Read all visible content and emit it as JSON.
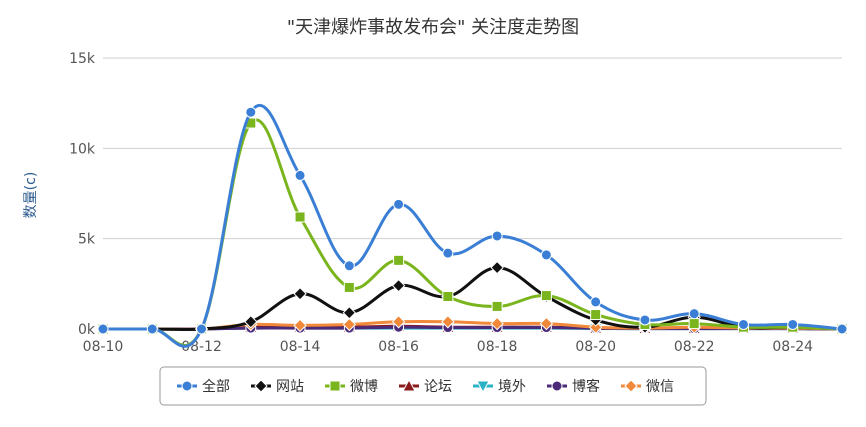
{
  "chart_data": {
    "type": "line",
    "title": "\"天津爆炸事故发布会\" 关注度走势图",
    "ylabel": "数量(c)",
    "xlabel": "",
    "x": [
      "08-10",
      "08-11",
      "08-12",
      "08-13",
      "08-14",
      "08-15",
      "08-16",
      "08-17",
      "08-18",
      "08-19",
      "08-20",
      "08-21",
      "08-22",
      "08-23",
      "08-24",
      "08-25"
    ],
    "x_tick_labels": [
      "08-10",
      "08-12",
      "08-14",
      "08-16",
      "08-18",
      "08-20",
      "08-22",
      "08-24"
    ],
    "y_tick_labels": [
      "0k",
      "5k",
      "10k",
      "15k"
    ],
    "ylim": [
      0,
      15000
    ],
    "grid": "horizontal",
    "legend_position": "bottom",
    "series": [
      {
        "name": "全部",
        "color": "#3a7fd5",
        "marker": "circle",
        "values": [
          0,
          0,
          0,
          12000,
          8500,
          3500,
          6900,
          4200,
          5150,
          4100,
          1500,
          500,
          850,
          250,
          250,
          0
        ]
      },
      {
        "name": "网站",
        "color": "#111111",
        "marker": "diamond",
        "values": [
          0,
          0,
          0,
          400,
          1950,
          900,
          2400,
          1800,
          3400,
          1800,
          500,
          100,
          650,
          100,
          100,
          0
        ]
      },
      {
        "name": "微博",
        "color": "#7ab51d",
        "marker": "square",
        "values": [
          0,
          0,
          0,
          11400,
          6200,
          2300,
          3800,
          1800,
          1250,
          1850,
          800,
          250,
          300,
          100,
          100,
          0
        ]
      },
      {
        "name": "论坛",
        "color": "#8b1a1a",
        "marker": "triangle",
        "values": [
          0,
          0,
          0,
          100,
          100,
          100,
          150,
          100,
          100,
          100,
          50,
          30,
          30,
          30,
          30,
          0
        ]
      },
      {
        "name": "境外",
        "color": "#2ab3c4",
        "marker": "triangle-down",
        "values": [
          0,
          0,
          0,
          50,
          50,
          50,
          50,
          50,
          50,
          50,
          30,
          20,
          20,
          20,
          20,
          0
        ]
      },
      {
        "name": "博客",
        "color": "#4b2a7a",
        "marker": "circle",
        "values": [
          0,
          0,
          0,
          50,
          50,
          50,
          100,
          80,
          80,
          80,
          40,
          20,
          20,
          20,
          20,
          0
        ]
      },
      {
        "name": "微信",
        "color": "#f0893a",
        "marker": "diamond",
        "values": [
          0,
          0,
          0,
          250,
          200,
          250,
          400,
          400,
          300,
          300,
          100,
          50,
          100,
          50,
          50,
          0
        ]
      }
    ]
  }
}
